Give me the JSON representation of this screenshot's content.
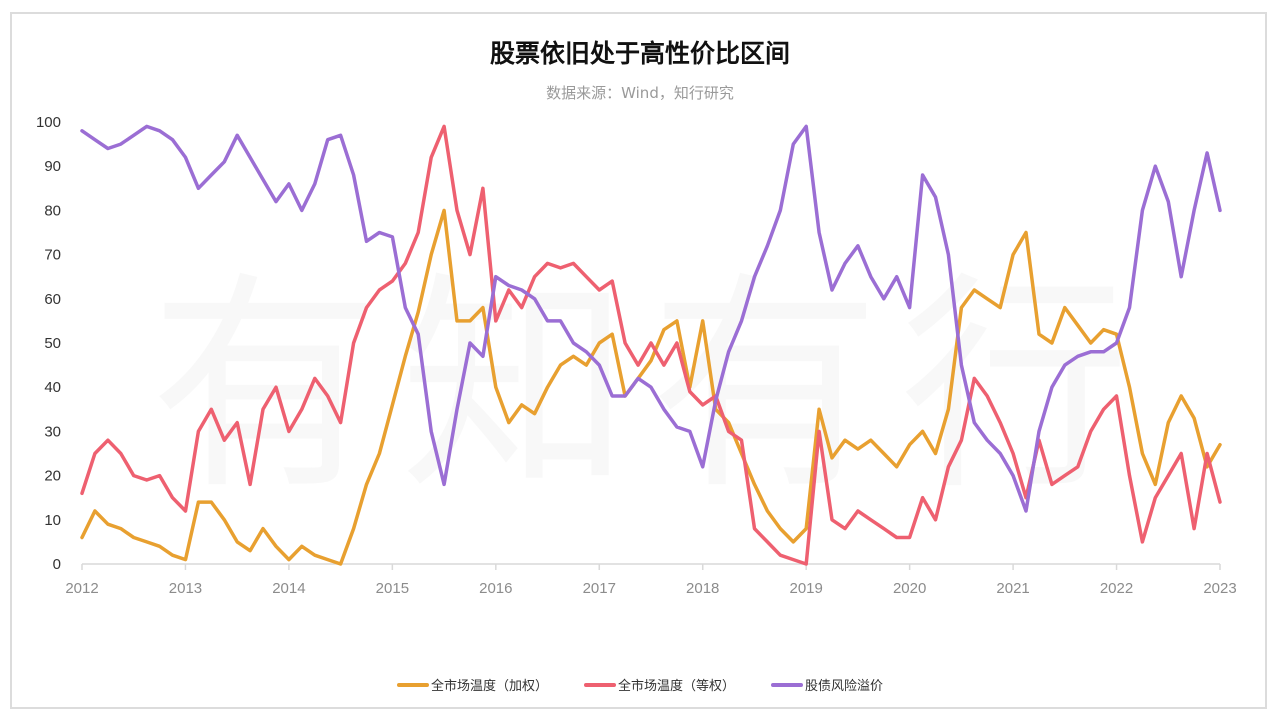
{
  "watermark": "有知有行",
  "chart_data": {
    "type": "line",
    "title": "股票依旧处于高性价比区间",
    "subtitle": "数据来源：Wind，知行研究",
    "xlabel": "",
    "ylabel": "",
    "xlim": [
      2012,
      2023
    ],
    "ylim": [
      0,
      100
    ],
    "x_ticks": [
      "2012",
      "2013",
      "2014",
      "2015",
      "2016",
      "2017",
      "2018",
      "2019",
      "2020",
      "2021",
      "2022",
      "2023"
    ],
    "y_ticks": [
      "0",
      "10",
      "20",
      "30",
      "40",
      "50",
      "60",
      "70",
      "80",
      "90",
      "100"
    ],
    "grid": false,
    "legend_position": "bottom",
    "x_start": 2012,
    "x_step": 0.125,
    "series": [
      {
        "name": "全市场温度（加权）",
        "color": "#E8A030",
        "values": [
          6,
          12,
          9,
          8,
          6,
          5,
          4,
          2,
          1,
          14,
          14,
          10,
          5,
          3,
          8,
          4,
          1,
          4,
          2,
          1,
          0,
          8,
          18,
          25,
          36,
          47,
          57,
          70,
          80,
          55,
          55,
          58,
          40,
          32,
          36,
          34,
          40,
          45,
          47,
          45,
          50,
          52,
          38,
          42,
          46,
          53,
          55,
          40,
          55,
          35,
          32,
          25,
          18,
          12,
          8,
          5,
          8,
          35,
          24,
          28,
          26,
          28,
          25,
          22,
          27,
          30,
          25,
          35,
          58,
          62,
          60,
          58,
          70,
          75,
          52,
          50,
          58,
          54,
          50,
          53,
          52,
          40,
          25,
          18,
          32,
          38,
          33,
          22,
          27
        ]
      },
      {
        "name": "全市场温度（等权）",
        "color": "#EE6070",
        "values": [
          16,
          25,
          28,
          25,
          20,
          19,
          20,
          15,
          12,
          30,
          35,
          28,
          32,
          18,
          35,
          40,
          30,
          35,
          42,
          38,
          32,
          50,
          58,
          62,
          64,
          68,
          75,
          92,
          99,
          80,
          70,
          85,
          55,
          62,
          58,
          65,
          68,
          67,
          68,
          65,
          62,
          64,
          50,
          45,
          50,
          45,
          50,
          39,
          36,
          38,
          30,
          28,
          8,
          5,
          2,
          1,
          0,
          30,
          10,
          8,
          12,
          10,
          8,
          6,
          6,
          15,
          10,
          22,
          28,
          42,
          38,
          32,
          25,
          15,
          28,
          18,
          20,
          22,
          30,
          35,
          38,
          20,
          5,
          15,
          20,
          25,
          8,
          25,
          14
        ]
      },
      {
        "name": "股债风险溢价",
        "color": "#9B6ED4",
        "values": [
          98,
          96,
          94,
          95,
          97,
          99,
          98,
          96,
          92,
          85,
          88,
          91,
          97,
          92,
          87,
          82,
          86,
          80,
          86,
          96,
          97,
          88,
          73,
          75,
          74,
          58,
          52,
          30,
          18,
          35,
          50,
          47,
          65,
          63,
          62,
          60,
          55,
          55,
          50,
          48,
          45,
          38,
          38,
          42,
          40,
          35,
          31,
          30,
          22,
          37,
          48,
          55,
          65,
          72,
          80,
          95,
          99,
          75,
          62,
          68,
          72,
          65,
          60,
          65,
          58,
          88,
          83,
          70,
          45,
          32,
          28,
          25,
          20,
          12,
          30,
          40,
          45,
          47,
          48,
          48,
          50,
          58,
          80,
          90,
          82,
          65,
          80,
          93,
          80
        ]
      }
    ]
  }
}
